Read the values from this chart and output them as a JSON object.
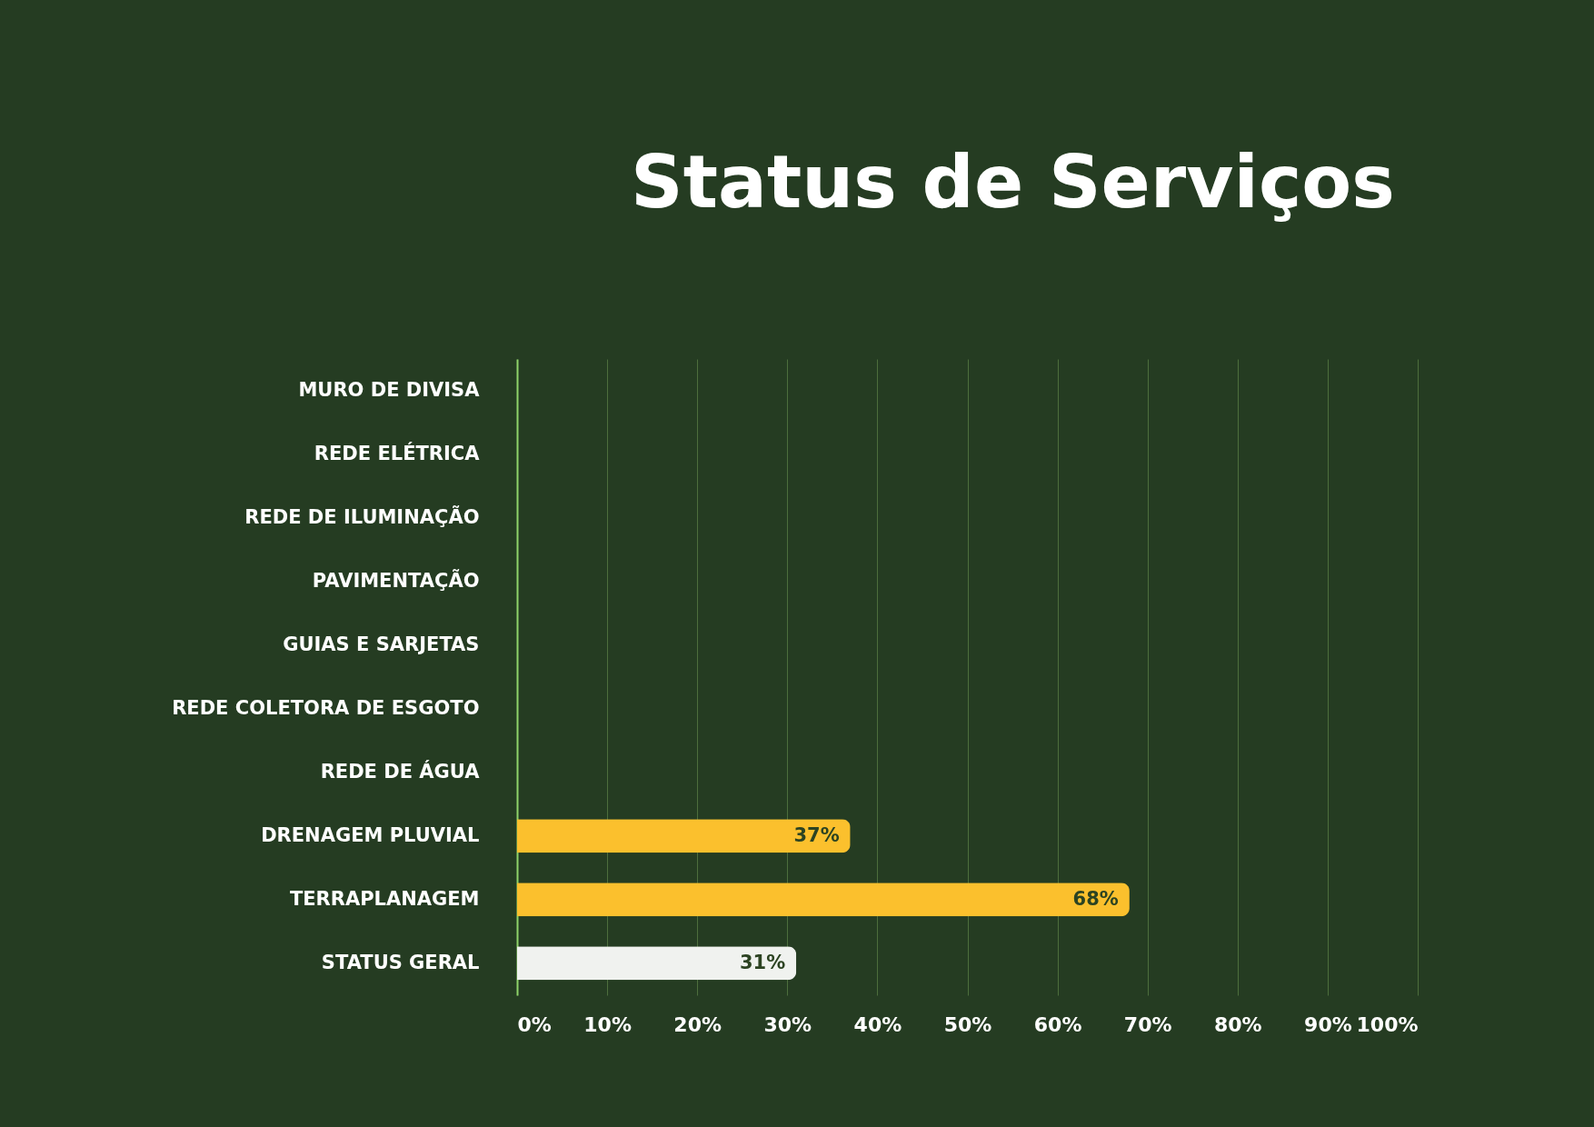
{
  "chart_data": {
    "type": "bar",
    "orientation": "horizontal",
    "title": "Status de Serviços",
    "categories": [
      "MURO DE DIVISA",
      "REDE ELÉTRICA",
      "REDE DE ILUMINAÇÃO",
      "PAVIMENTAÇÃO",
      "GUIAS E SARJETAS",
      "REDE COLETORA DE ESGOTO",
      "REDE DE ÁGUA",
      "DRENAGEM PLUVIAL",
      "TERRAPLANAGEM",
      "STATUS GERAL"
    ],
    "values": [
      0,
      0,
      0,
      0,
      0,
      0,
      0,
      37,
      68,
      31
    ],
    "colors": [
      "#fbc02d",
      "#fbc02d",
      "#fbc02d",
      "#fbc02d",
      "#fbc02d",
      "#fbc02d",
      "#fbc02d",
      "#fbc02d",
      "#fbc02d",
      "#f0f2ef"
    ],
    "value_labels": [
      null,
      null,
      null,
      null,
      null,
      null,
      null,
      "37%",
      "68%",
      "31%"
    ],
    "xlim": [
      0,
      100
    ],
    "xticks": [
      {
        "value": 0,
        "label": "0%"
      },
      {
        "value": 10,
        "label": "10%"
      },
      {
        "value": 20,
        "label": "20%"
      },
      {
        "value": 30,
        "label": "30%"
      },
      {
        "value": 40,
        "label": "40%"
      },
      {
        "value": 50,
        "label": "50%"
      },
      {
        "value": 60,
        "label": "60%"
      },
      {
        "value": 70,
        "label": "70%"
      },
      {
        "value": 80,
        "label": "80%"
      },
      {
        "value": 90,
        "label": "90%"
      },
      {
        "value": 100,
        "label": "100%"
      }
    ],
    "grid": "x"
  }
}
